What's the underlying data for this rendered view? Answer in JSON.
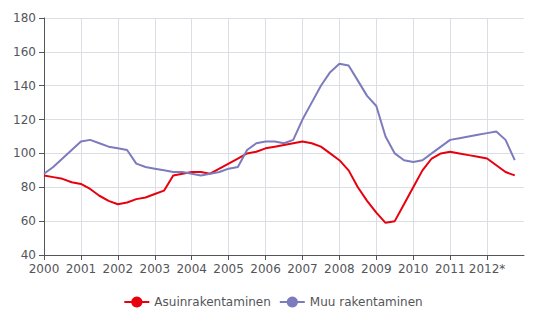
{
  "chart_data": {
    "type": "line",
    "x": [
      2000.0,
      2000.25,
      2000.5,
      2000.75,
      2001.0,
      2001.25,
      2001.5,
      2001.75,
      2002.0,
      2002.25,
      2002.5,
      2002.75,
      2003.0,
      2003.25,
      2003.5,
      2003.75,
      2004.0,
      2004.25,
      2004.5,
      2004.75,
      2005.0,
      2005.25,
      2005.5,
      2005.75,
      2006.0,
      2006.25,
      2006.5,
      2006.75,
      2007.0,
      2007.25,
      2007.5,
      2007.75,
      2008.0,
      2008.25,
      2008.5,
      2008.75,
      2009.0,
      2009.25,
      2009.5,
      2009.75,
      2010.0,
      2010.25,
      2010.5,
      2010.75,
      2011.0,
      2011.25,
      2011.5,
      2011.75,
      2012.0,
      2012.25,
      2012.5,
      2012.75
    ],
    "series": [
      {
        "name": "Asuinrakentaminen",
        "color": "#e8000e",
        "values": [
          87,
          86,
          85,
          83,
          82,
          79,
          75,
          72,
          70,
          71,
          73,
          74,
          76,
          78,
          87,
          88,
          89,
          89,
          88,
          91,
          94,
          97,
          100,
          101,
          103,
          104,
          105,
          106,
          107,
          106,
          104,
          100,
          96,
          90,
          80,
          72,
          65,
          59,
          60,
          70,
          80,
          90,
          97,
          100,
          101,
          100,
          99,
          98,
          97,
          93,
          89,
          87
        ]
      },
      {
        "name": "Muu rakentaminen",
        "color": "#7b7bbd",
        "values": [
          88,
          92,
          97,
          102,
          107,
          108,
          106,
          104,
          103,
          102,
          94,
          92,
          91,
          90,
          89,
          89,
          88,
          87,
          88,
          89,
          91,
          92,
          102,
          106,
          107,
          107,
          106,
          108,
          120,
          130,
          140,
          148,
          153,
          152,
          143,
          134,
          128,
          110,
          100,
          96,
          95,
          96,
          100,
          104,
          108,
          109,
          110,
          111,
          112,
          113,
          108,
          96
        ]
      }
    ],
    "xlim": [
      2000,
      2013
    ],
    "xticks": [
      2000,
      2001,
      2002,
      2003,
      2004,
      2005,
      2006,
      2007,
      2008,
      2009,
      2010,
      2011,
      {
        "value": 2012,
        "label": "2012*"
      }
    ],
    "ylim": [
      40,
      180
    ],
    "yticks": [
      40,
      60,
      80,
      100,
      120,
      140,
      160,
      180
    ],
    "grid": true,
    "legend": "bottom"
  }
}
